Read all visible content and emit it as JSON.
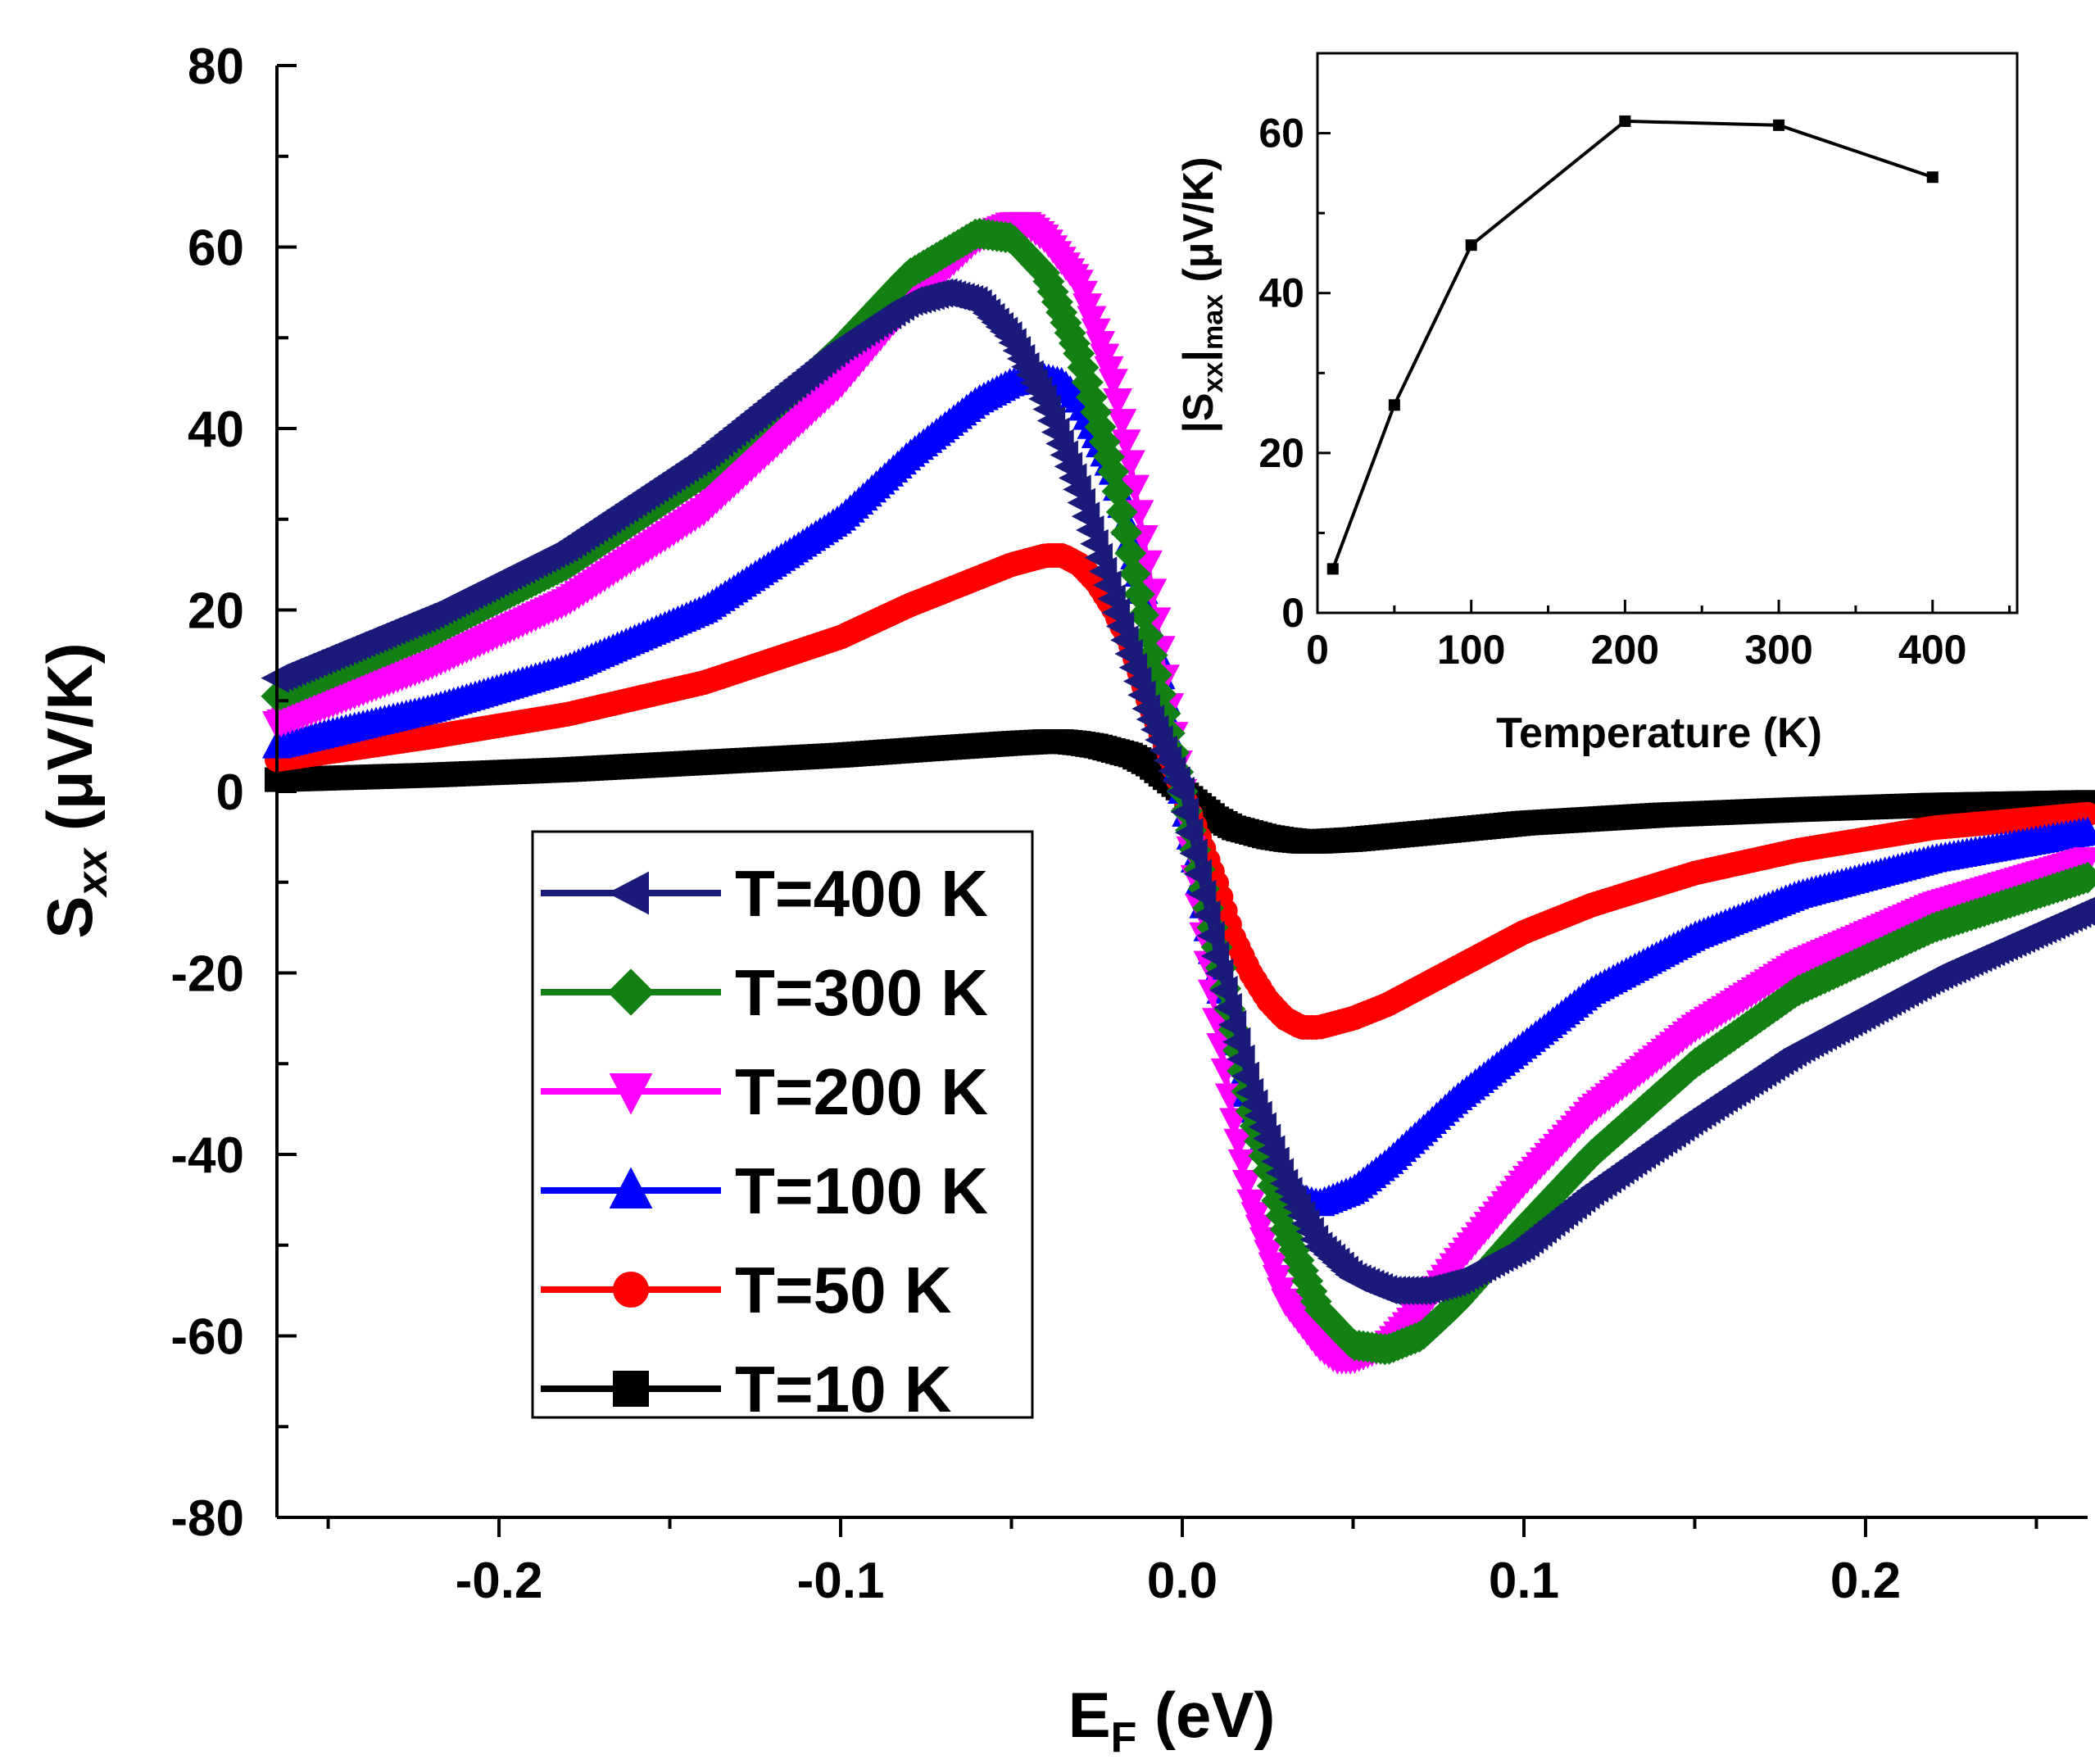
{
  "chart_data": [
    {
      "id": "main",
      "type": "line",
      "title": "",
      "xlabel": {
        "main": "E",
        "sub": "F",
        "rest": " (eV)"
      },
      "ylabel": {
        "main": "S",
        "sub": "xx",
        "rest": " (μV/K)"
      },
      "xlim": [
        -0.265,
        0.265
      ],
      "ylim": [
        -80,
        80
      ],
      "xticks": [
        -0.2,
        -0.1,
        0.0,
        0.1,
        0.2
      ],
      "xtick_labels": [
        "-0.2",
        "-0.1",
        "0.0",
        "0.1",
        "0.2"
      ],
      "yticks": [
        -80,
        -60,
        -40,
        -20,
        0,
        20,
        40,
        60,
        80
      ],
      "ytick_labels": [
        "-80",
        "-60",
        "-40",
        "-20",
        "0",
        "20",
        "40",
        "60",
        "80"
      ],
      "legend_position": "lower-left",
      "series": [
        {
          "name": "T=400 K",
          "color": "#1a1a7a",
          "marker": "triangle-left",
          "x": [
            -0.265,
            -0.22,
            -0.18,
            -0.14,
            -0.1,
            -0.08,
            -0.07,
            -0.06,
            -0.05,
            -0.04,
            -0.03,
            -0.02,
            -0.01,
            0.0,
            0.01,
            0.02,
            0.03,
            0.04,
            0.05,
            0.06,
            0.07,
            0.08,
            0.1,
            0.12,
            0.15,
            0.18,
            0.22,
            0.265
          ],
          "y": [
            12.5,
            19.5,
            27.0,
            37.0,
            49.0,
            54.0,
            55.0,
            54.0,
            50.0,
            43.0,
            33.0,
            21.0,
            9.0,
            0.0,
            -18.0,
            -33.0,
            -43.0,
            -50.0,
            -53.5,
            -55.0,
            -55.0,
            -54.0,
            -50.0,
            -44.0,
            -36.0,
            -28.5,
            -20.5,
            -13.0
          ]
        },
        {
          "name": "T=300 K",
          "color": "#138013",
          "marker": "diamond",
          "x": [
            -0.265,
            -0.22,
            -0.18,
            -0.14,
            -0.1,
            -0.08,
            -0.06,
            -0.05,
            -0.04,
            -0.03,
            -0.02,
            -0.015,
            -0.01,
            0.0,
            0.01,
            0.015,
            0.02,
            0.03,
            0.04,
            0.05,
            0.06,
            0.07,
            0.08,
            0.1,
            0.12,
            0.15,
            0.18,
            0.22,
            0.265
          ],
          "y": [
            10.5,
            17.5,
            25.0,
            35.0,
            49.0,
            57.0,
            61.5,
            61.0,
            57.0,
            48.0,
            35.0,
            26.0,
            17.0,
            0.0,
            -17.0,
            -26.0,
            -35.0,
            -48.0,
            -57.0,
            -61.0,
            -61.5,
            -60.0,
            -56.5,
            -48.0,
            -40.0,
            -30.0,
            -22.0,
            -15.0,
            -9.5
          ]
        },
        {
          "name": "T=200 K",
          "color": "#ff00ff",
          "marker": "triangle-down",
          "x": [
            -0.265,
            -0.22,
            -0.18,
            -0.14,
            -0.1,
            -0.08,
            -0.06,
            -0.05,
            -0.045,
            -0.04,
            -0.03,
            -0.02,
            -0.015,
            -0.01,
            0.0,
            0.01,
            0.015,
            0.02,
            0.03,
            0.04,
            0.045,
            0.05,
            0.06,
            0.07,
            0.08,
            0.1,
            0.12,
            0.15,
            0.18,
            0.22,
            0.265
          ],
          "y": [
            7.5,
            14.0,
            21.0,
            31.0,
            45.0,
            54.0,
            61.0,
            62.5,
            62.5,
            61.0,
            56.0,
            45.0,
            36.0,
            25.0,
            0.0,
            -25.0,
            -36.0,
            -45.0,
            -56.0,
            -61.0,
            -62.5,
            -62.5,
            -61.0,
            -57.0,
            -52.0,
            -43.0,
            -35.0,
            -26.0,
            -19.0,
            -12.5,
            -7.5
          ]
        },
        {
          "name": "T=100 K",
          "color": "#0000ff",
          "marker": "triangle-up",
          "x": [
            -0.265,
            -0.22,
            -0.18,
            -0.14,
            -0.1,
            -0.08,
            -0.06,
            -0.05,
            -0.04,
            -0.035,
            -0.03,
            -0.02,
            -0.01,
            0.0,
            0.01,
            0.02,
            0.03,
            0.035,
            0.04,
            0.05,
            0.06,
            0.08,
            0.1,
            0.12,
            0.15,
            0.18,
            0.22,
            0.265
          ],
          "y": [
            5.0,
            9.0,
            13.5,
            20.0,
            30.0,
            37.0,
            43.0,
            45.0,
            45.5,
            45.0,
            43.0,
            35.0,
            20.0,
            0.0,
            -20.0,
            -35.0,
            -43.0,
            -45.0,
            -45.5,
            -44.0,
            -41.0,
            -34.0,
            -28.0,
            -22.0,
            -16.0,
            -11.5,
            -7.5,
            -4.5
          ]
        },
        {
          "name": "T=50 K",
          "color": "#ff0000",
          "marker": "circle",
          "x": [
            -0.265,
            -0.22,
            -0.18,
            -0.14,
            -0.1,
            -0.08,
            -0.06,
            -0.05,
            -0.04,
            -0.035,
            -0.03,
            -0.025,
            -0.02,
            -0.015,
            -0.01,
            0.0,
            0.01,
            0.015,
            0.02,
            0.025,
            0.03,
            0.035,
            0.04,
            0.05,
            0.06,
            0.08,
            0.1,
            0.12,
            0.15,
            0.18,
            0.22,
            0.265
          ],
          "y": [
            3.5,
            6.0,
            8.5,
            12.0,
            17.0,
            20.5,
            23.5,
            25.0,
            26.0,
            26.0,
            25.0,
            23.0,
            20.0,
            16.0,
            10.0,
            0.0,
            -10.0,
            -16.0,
            -20.0,
            -23.0,
            -25.0,
            -26.0,
            -26.0,
            -25.0,
            -23.5,
            -19.5,
            -15.5,
            -12.5,
            -9.0,
            -6.5,
            -4.0,
            -2.5
          ]
        },
        {
          "name": "T=10 K",
          "color": "#000000",
          "marker": "square",
          "x": [
            -0.265,
            -0.22,
            -0.18,
            -0.14,
            -0.1,
            -0.07,
            -0.05,
            -0.04,
            -0.035,
            -0.03,
            -0.025,
            -0.02,
            -0.015,
            -0.01,
            0.0,
            0.01,
            0.015,
            0.02,
            0.025,
            0.03,
            0.035,
            0.04,
            0.05,
            0.07,
            0.1,
            0.14,
            0.18,
            0.22,
            0.265
          ],
          "y": [
            1.3,
            1.8,
            2.4,
            3.2,
            4.0,
            4.8,
            5.3,
            5.5,
            5.5,
            5.3,
            5.0,
            4.5,
            4.0,
            3.0,
            0.0,
            -3.0,
            -4.0,
            -4.5,
            -5.0,
            -5.3,
            -5.5,
            -5.5,
            -5.3,
            -4.6,
            -3.5,
            -2.6,
            -2.0,
            -1.5,
            -1.2
          ]
        }
      ]
    },
    {
      "id": "inset",
      "type": "line",
      "title": "",
      "xlabel": "Temperature (K)",
      "ylabel": {
        "pre": "|S",
        "sub1": "xx",
        "mid": "|",
        "sub2": "max",
        "rest": " (μV/K)"
      },
      "xlim": [
        0,
        455
      ],
      "ylim": [
        0,
        70
      ],
      "xticks": [
        0,
        100,
        200,
        300,
        400
      ],
      "xtick_labels": [
        "0",
        "100",
        "200",
        "300",
        "400"
      ],
      "yticks": [
        0,
        20,
        40,
        60
      ],
      "ytick_labels": [
        "0",
        "20",
        "40",
        "60"
      ],
      "series": [
        {
          "name": "|Sxx|max",
          "color": "#000000",
          "marker": "square",
          "x": [
            10,
            50,
            100,
            200,
            300,
            400
          ],
          "y": [
            5.5,
            26.0,
            46.0,
            61.5,
            61.0,
            54.5
          ]
        }
      ]
    }
  ]
}
